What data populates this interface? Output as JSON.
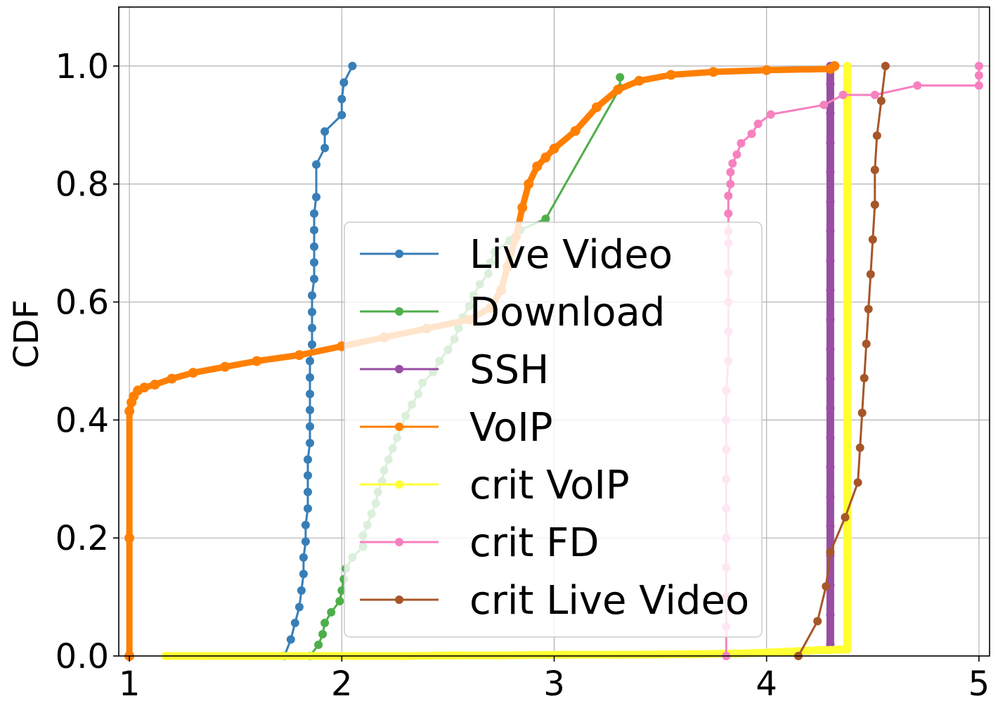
{
  "chart_data": {
    "type": "line",
    "title": "",
    "xlabel": "",
    "ylabel": "CDF",
    "xlim": [
      0.95,
      5.05
    ],
    "ylim": [
      0.0,
      1.1
    ],
    "x_ticks": [
      "1",
      "2",
      "3",
      "4",
      "5"
    ],
    "y_ticks": [
      "0.0",
      "0.2",
      "0.4",
      "0.6",
      "0.8",
      "1.0"
    ],
    "grid": true,
    "legend_placement": "center-right",
    "series": [
      {
        "name": "Live Video",
        "color": "#377eb8",
        "x": [
          1.73,
          1.76,
          1.78,
          1.8,
          1.81,
          1.82,
          1.82,
          1.83,
          1.83,
          1.84,
          1.84,
          1.84,
          1.84,
          1.85,
          1.85,
          1.85,
          1.85,
          1.85,
          1.85,
          1.86,
          1.86,
          1.86,
          1.86,
          1.87,
          1.87,
          1.87,
          1.87,
          1.87,
          1.88,
          1.88,
          1.92,
          1.92,
          2.0,
          2.0,
          2.01,
          2.05
        ],
        "y": [
          0.0,
          0.028,
          0.056,
          0.083,
          0.111,
          0.139,
          0.167,
          0.194,
          0.222,
          0.25,
          0.278,
          0.306,
          0.333,
          0.361,
          0.389,
          0.417,
          0.444,
          0.472,
          0.5,
          0.528,
          0.556,
          0.583,
          0.611,
          0.639,
          0.667,
          0.694,
          0.722,
          0.75,
          0.778,
          0.833,
          0.861,
          0.889,
          0.917,
          0.944,
          0.972,
          1.0
        ]
      },
      {
        "name": "Download",
        "color": "#4daf4a",
        "x": [
          1.85,
          1.89,
          1.91,
          1.92,
          1.95,
          1.99,
          2.0,
          2.01,
          2.02,
          2.05,
          2.1,
          2.1,
          2.12,
          2.14,
          2.16,
          2.17,
          2.19,
          2.2,
          2.22,
          2.24,
          2.26,
          2.28,
          2.3,
          2.33,
          2.36,
          2.38,
          2.43,
          2.46,
          2.5,
          2.53,
          2.55,
          2.57,
          2.6,
          2.62,
          2.65,
          2.69,
          2.7,
          2.72,
          2.79,
          2.84,
          2.96,
          3.31,
          3.31
        ],
        "y": [
          0.0,
          0.019,
          0.037,
          0.056,
          0.074,
          0.093,
          0.111,
          0.13,
          0.148,
          0.167,
          0.185,
          0.204,
          0.222,
          0.241,
          0.259,
          0.278,
          0.296,
          0.315,
          0.333,
          0.352,
          0.37,
          0.389,
          0.407,
          0.426,
          0.444,
          0.463,
          0.481,
          0.5,
          0.519,
          0.537,
          0.556,
          0.574,
          0.593,
          0.611,
          0.63,
          0.648,
          0.667,
          0.685,
          0.704,
          0.722,
          0.741,
          0.963,
          0.981
        ]
      },
      {
        "name": "SSH",
        "color": "#984ea3",
        "x": [
          4.3,
          4.3,
          4.3,
          4.3,
          4.3,
          4.3,
          4.3,
          4.3,
          4.3,
          4.3,
          4.3,
          4.3,
          4.3,
          4.3,
          4.3,
          4.3,
          4.3,
          4.3,
          4.3,
          4.3,
          4.3
        ],
        "y": [
          0.02,
          0.07,
          0.12,
          0.17,
          0.22,
          0.27,
          0.32,
          0.37,
          0.42,
          0.47,
          0.52,
          0.57,
          0.62,
          0.67,
          0.72,
          0.77,
          0.82,
          0.87,
          0.92,
          0.97,
          1.0
        ]
      },
      {
        "name": "VoIP",
        "color": "#ff7f00",
        "x": [
          1.0,
          1.0,
          1.0,
          1.01,
          1.02,
          1.04,
          1.07,
          1.12,
          1.2,
          1.3,
          1.45,
          1.6,
          1.8,
          2.0,
          2.2,
          2.4,
          2.6,
          2.7,
          2.75,
          2.78,
          2.82,
          2.85,
          2.88,
          2.92,
          2.96,
          3.0,
          3.1,
          3.2,
          3.3,
          3.4,
          3.55,
          3.75,
          4.0,
          4.3,
          4.32
        ],
        "y": [
          0.0,
          0.2,
          0.415,
          0.43,
          0.44,
          0.45,
          0.455,
          0.46,
          0.47,
          0.48,
          0.49,
          0.5,
          0.51,
          0.525,
          0.54,
          0.555,
          0.57,
          0.59,
          0.62,
          0.66,
          0.71,
          0.76,
          0.8,
          0.83,
          0.845,
          0.86,
          0.89,
          0.93,
          0.96,
          0.975,
          0.985,
          0.99,
          0.993,
          0.995,
          1.0
        ]
      },
      {
        "name": "crit VoIP",
        "color": "#ffff33",
        "x": [
          1.17,
          1.35,
          1.52,
          1.72,
          2.05,
          2.3,
          2.53,
          2.73,
          3.05,
          3.3,
          3.65,
          3.85,
          3.95,
          4.02,
          4.08,
          4.15,
          4.2,
          4.25,
          4.3,
          4.34,
          4.38,
          4.38,
          4.38,
          4.38,
          4.38,
          4.38,
          4.38,
          4.38,
          4.38,
          4.38,
          4.38,
          4.38
        ],
        "y": [
          0.0,
          0.0,
          0.0,
          0.0,
          0.0,
          0.0,
          0.001,
          0.001,
          0.002,
          0.002,
          0.003,
          0.004,
          0.005,
          0.006,
          0.007,
          0.008,
          0.009,
          0.01,
          0.01,
          0.011,
          0.011,
          0.1,
          0.2,
          0.3,
          0.4,
          0.5,
          0.6,
          0.7,
          0.8,
          0.9,
          0.97,
          1.0
        ]
      },
      {
        "name": "crit FD",
        "color": "#f781bf",
        "x": [
          3.81,
          3.81,
          3.81,
          3.81,
          3.81,
          3.81,
          3.81,
          3.81,
          3.81,
          3.81,
          3.82,
          3.82,
          3.82,
          3.82,
          3.82,
          3.82,
          3.82,
          3.82,
          3.83,
          3.83,
          3.84,
          3.86,
          3.88,
          3.93,
          3.96,
          4.02,
          4.27,
          4.36,
          4.51,
          4.71,
          5.0,
          5.0,
          5.0
        ],
        "y": [
          0.0,
          0.05,
          0.1,
          0.15,
          0.2,
          0.25,
          0.3,
          0.35,
          0.4,
          0.45,
          0.5,
          0.55,
          0.6,
          0.65,
          0.7,
          0.72,
          0.75,
          0.78,
          0.8,
          0.82,
          0.835,
          0.85,
          0.869,
          0.885,
          0.902,
          0.918,
          0.934,
          0.951,
          0.951,
          0.967,
          0.967,
          0.984,
          1.0
        ]
      },
      {
        "name": "crit Live Video",
        "color": "#a65628",
        "x": [
          4.15,
          4.24,
          4.28,
          4.3,
          4.37,
          4.43,
          4.44,
          4.45,
          4.46,
          4.47,
          4.48,
          4.49,
          4.5,
          4.51,
          4.51,
          4.52,
          4.54,
          4.56
        ],
        "y": [
          0.0,
          0.059,
          0.118,
          0.176,
          0.235,
          0.294,
          0.353,
          0.412,
          0.471,
          0.529,
          0.588,
          0.647,
          0.706,
          0.765,
          0.824,
          0.882,
          0.941,
          1.0
        ]
      }
    ]
  }
}
